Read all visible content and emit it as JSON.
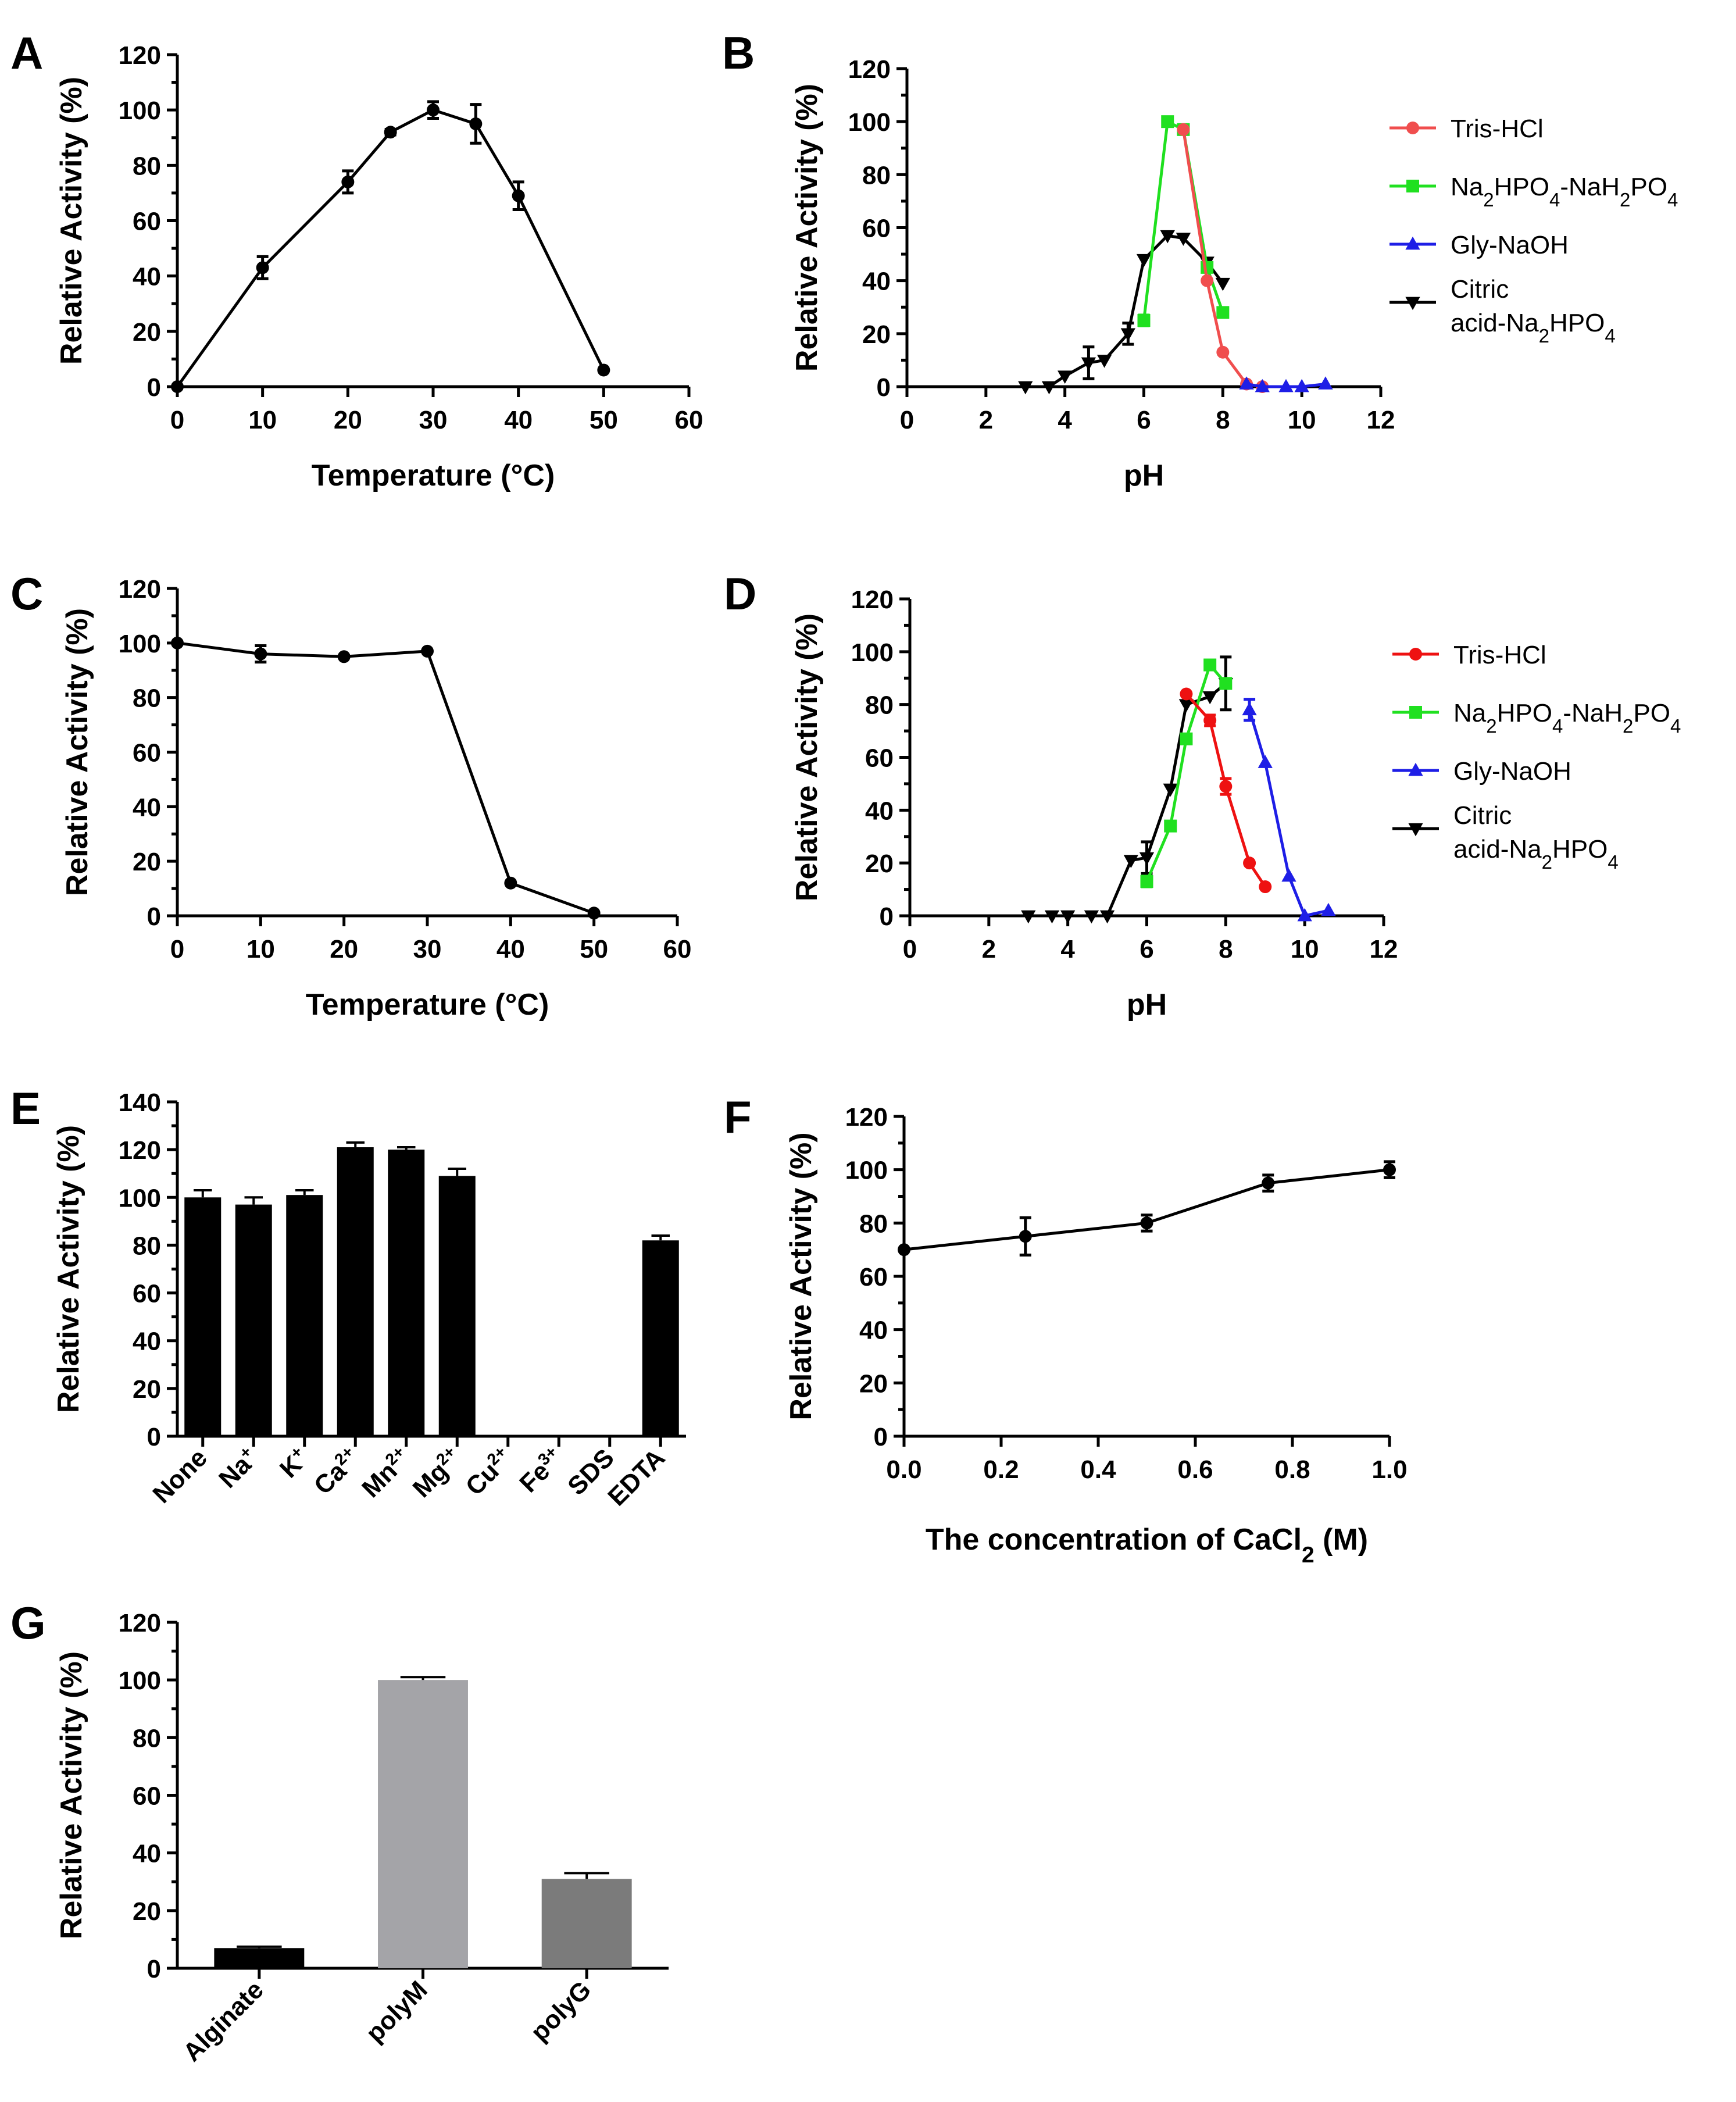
{
  "figure": {
    "panels": [
      "A",
      "B",
      "C",
      "D",
      "E",
      "F",
      "G"
    ]
  },
  "chart_data": [
    {
      "id": "A",
      "type": "line",
      "panel_label": "A",
      "xlabel": "Temperature (°C)",
      "ylabel": "Relative Activity (%)",
      "xlim": [
        0,
        60
      ],
      "ylim": [
        0,
        120
      ],
      "xticks": [
        0,
        10,
        20,
        30,
        40,
        50,
        60
      ],
      "yticks": [
        0,
        20,
        40,
        60,
        80,
        100,
        120
      ],
      "series": [
        {
          "name": "",
          "color": "#000000",
          "marker": "circle",
          "x": [
            0,
            10,
            20,
            25,
            30,
            35,
            40,
            50
          ],
          "y": [
            0,
            43,
            74,
            92,
            100,
            95,
            69,
            6
          ],
          "err": [
            0,
            4,
            4,
            1,
            3,
            7,
            5,
            0
          ]
        }
      ]
    },
    {
      "id": "B",
      "type": "line",
      "panel_label": "B",
      "xlabel": "pH",
      "ylabel": "Relative Activity (%)",
      "xlim": [
        0,
        12
      ],
      "ylim": [
        0,
        120
      ],
      "xticks": [
        0,
        2,
        4,
        6,
        8,
        10,
        12
      ],
      "yticks": [
        0,
        20,
        40,
        60,
        80,
        100,
        120
      ],
      "legend": [
        {
          "label": "Tris-HCl",
          "color": "#f04e4e",
          "marker": "circle"
        },
        {
          "label": "Na2HPO4-NaH2PO4",
          "color": "#20e020",
          "marker": "square"
        },
        {
          "label": "Gly-NaOH",
          "color": "#1e1ee6",
          "marker": "triangle-up"
        },
        {
          "label": "Citric acid-Na2HPO4",
          "color": "#000000",
          "marker": "triangle-down"
        }
      ],
      "series": [
        {
          "name": "Citric acid-Na2HPO4",
          "color": "#000000",
          "marker": "triangle-down",
          "x": [
            3.0,
            3.6,
            4.0,
            4.6,
            5.0,
            5.6,
            6.0,
            6.6,
            7.0,
            7.6,
            8.0
          ],
          "y": [
            0,
            0,
            4,
            9,
            10,
            20,
            48,
            57,
            56,
            47,
            39
          ],
          "err": [
            0,
            0,
            0,
            6,
            0,
            4,
            0,
            0,
            0,
            0,
            0
          ]
        },
        {
          "name": "Na2HPO4-NaH2PO4",
          "color": "#20e020",
          "marker": "square",
          "x": [
            6.0,
            6.6,
            7.0,
            7.6,
            8.0
          ],
          "y": [
            25,
            100,
            97,
            45,
            28
          ],
          "err": [
            2,
            0,
            0,
            0,
            0
          ]
        },
        {
          "name": "Tris-HCl",
          "color": "#f04e4e",
          "marker": "circle",
          "x": [
            7.0,
            7.6,
            8.0,
            8.6,
            9.0
          ],
          "y": [
            97,
            40,
            13,
            1,
            0
          ],
          "err": [
            0,
            0,
            0,
            0,
            0
          ]
        },
        {
          "name": "Gly-NaOH",
          "color": "#1e1ee6",
          "marker": "triangle-up",
          "x": [
            8.6,
            9.0,
            9.6,
            10.0,
            10.6
          ],
          "y": [
            1,
            0,
            0,
            0,
            1
          ],
          "err": [
            0,
            0,
            0,
            0,
            0
          ]
        }
      ]
    },
    {
      "id": "C",
      "type": "line",
      "panel_label": "C",
      "xlabel": "Temperature (°C)",
      "ylabel": "Relative Activity (%)",
      "xlim": [
        0,
        60
      ],
      "ylim": [
        0,
        120
      ],
      "xticks": [
        0,
        10,
        20,
        30,
        40,
        50,
        60
      ],
      "yticks": [
        0,
        20,
        40,
        60,
        80,
        100,
        120
      ],
      "series": [
        {
          "name": "",
          "color": "#000000",
          "marker": "circle",
          "x": [
            0,
            10,
            20,
            30,
            40,
            50
          ],
          "y": [
            100,
            96,
            95,
            97,
            12,
            1
          ],
          "err": [
            0,
            3,
            0,
            0,
            0,
            0
          ]
        }
      ]
    },
    {
      "id": "D",
      "type": "line",
      "panel_label": "D",
      "xlabel": "pH",
      "ylabel": "Relative Activity (%)",
      "xlim": [
        0,
        12
      ],
      "ylim": [
        0,
        120
      ],
      "xticks": [
        0,
        2,
        4,
        6,
        8,
        10,
        12
      ],
      "yticks": [
        0,
        20,
        40,
        60,
        80,
        100,
        120
      ],
      "legend": [
        {
          "label": "Tris-HCl",
          "color": "#ee1111",
          "marker": "circle"
        },
        {
          "label": "Na2HPO4-NaH2PO4",
          "color": "#20e020",
          "marker": "square"
        },
        {
          "label": "Gly-NaOH",
          "color": "#1e1ee6",
          "marker": "triangle-up"
        },
        {
          "label": "Citric acid-Na2HPO4",
          "color": "#000000",
          "marker": "triangle-down"
        }
      ],
      "series": [
        {
          "name": "Citric acid-Na2HPO4",
          "color": "#000000",
          "marker": "triangle-down",
          "x": [
            3.0,
            3.6,
            4.0,
            4.6,
            5.0,
            5.6,
            6.0,
            6.6,
            7.0,
            7.6,
            8.0
          ],
          "y": [
            0,
            0,
            0,
            0,
            0,
            21,
            22,
            48,
            80,
            83,
            88
          ],
          "err": [
            0,
            0,
            0,
            0,
            0,
            0,
            6,
            0,
            0,
            0,
            10
          ]
        },
        {
          "name": "Na2HPO4-NaH2PO4",
          "color": "#20e020",
          "marker": "square",
          "x": [
            6.0,
            6.6,
            7.0,
            7.6,
            8.0
          ],
          "y": [
            13,
            34,
            67,
            95,
            88
          ],
          "err": [
            2,
            0,
            0,
            0,
            0
          ]
        },
        {
          "name": "Tris-HCl",
          "color": "#ee1111",
          "marker": "circle",
          "x": [
            7.0,
            7.6,
            8.0,
            8.6,
            9.0
          ],
          "y": [
            84,
            74,
            49,
            20,
            11
          ],
          "err": [
            0,
            2,
            3,
            0,
            0
          ]
        },
        {
          "name": "Gly-NaOH",
          "color": "#1e1ee6",
          "marker": "triangle-up",
          "x": [
            8.6,
            9.0,
            9.6,
            10.0,
            10.6
          ],
          "y": [
            78,
            58,
            15,
            0,
            2
          ],
          "err": [
            4,
            0,
            0,
            0,
            0
          ]
        }
      ]
    },
    {
      "id": "E",
      "type": "bar",
      "panel_label": "E",
      "xlabel": "",
      "ylabel": "Relative Activity (%)",
      "ylim": [
        0,
        140
      ],
      "yticks": [
        0,
        20,
        40,
        60,
        80,
        100,
        120,
        140
      ],
      "categories": [
        {
          "base": "None",
          "sup": ""
        },
        {
          "base": "Na",
          "sup": "+"
        },
        {
          "base": "K",
          "sup": "+"
        },
        {
          "base": "Ca",
          "sup": "2+"
        },
        {
          "base": "Mn",
          "sup": "2+"
        },
        {
          "base": "Mg",
          "sup": "2+"
        },
        {
          "base": "Cu",
          "sup": "2+"
        },
        {
          "base": "Fe",
          "sup": "3+"
        },
        {
          "base": "SDS",
          "sup": ""
        },
        {
          "base": "EDTA",
          "sup": ""
        }
      ],
      "values": [
        100,
        97,
        101,
        121,
        120,
        109,
        0,
        0,
        0,
        82
      ],
      "err": [
        3,
        3,
        2,
        2,
        1,
        3,
        0,
        0,
        0,
        2
      ],
      "colors": [
        "#000000",
        "#000000",
        "#000000",
        "#000000",
        "#000000",
        "#000000",
        "#000000",
        "#000000",
        "#000000",
        "#000000"
      ]
    },
    {
      "id": "F",
      "type": "line",
      "panel_label": "F",
      "xlabel": "The concentration of CaCl2 (M)",
      "ylabel": "Relative Activity (%)",
      "xlim": [
        0,
        1.0
      ],
      "ylim": [
        0,
        120
      ],
      "xticks": [
        "0.0",
        "0.2",
        "0.4",
        "0.6",
        "0.8",
        "1.0"
      ],
      "yticks": [
        0,
        20,
        40,
        60,
        80,
        100,
        120
      ],
      "series": [
        {
          "name": "",
          "color": "#000000",
          "marker": "circle",
          "x": [
            0,
            0.25,
            0.5,
            0.75,
            1.0
          ],
          "y": [
            70,
            75,
            80,
            95,
            100
          ],
          "err": [
            0,
            7,
            3,
            3,
            3
          ]
        }
      ]
    },
    {
      "id": "G",
      "type": "bar",
      "panel_label": "G",
      "xlabel": "",
      "ylabel": "Relative Activity (%)",
      "ylim": [
        0,
        120
      ],
      "yticks": [
        0,
        20,
        40,
        60,
        80,
        100,
        120
      ],
      "categories": [
        {
          "base": "Alginate",
          "sup": ""
        },
        {
          "base": "polyM",
          "sup": ""
        },
        {
          "base": "polyG",
          "sup": ""
        }
      ],
      "values": [
        7,
        100,
        31
      ],
      "err": [
        0.5,
        1,
        2
      ],
      "colors": [
        "#000000",
        "#a4a4a8",
        "#7b7b7b"
      ]
    }
  ]
}
